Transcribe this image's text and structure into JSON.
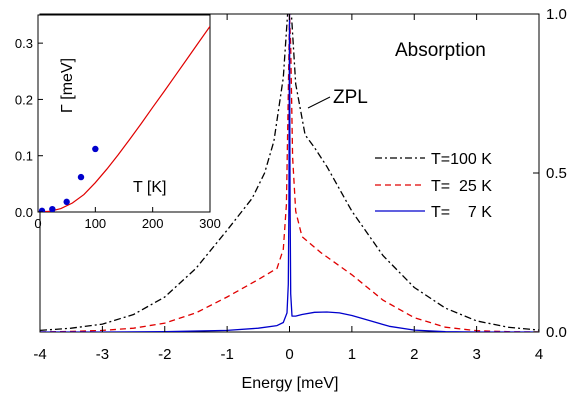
{
  "chart_data": [
    {
      "type": "line",
      "title": "",
      "xlabel": "Energy [meV]",
      "ylabel": "",
      "xlim": [
        -4,
        4
      ],
      "ylim": [
        0,
        1
      ],
      "x_ticks": [
        "-4",
        "-3",
        "-2",
        "-1",
        "0",
        "1",
        "2",
        "3",
        "4"
      ],
      "y_ticks_right": [
        "0.0",
        "0.5",
        "1.0"
      ],
      "legend_placement": "right",
      "annotations": [
        "Absorption",
        "ZPL"
      ],
      "grid": false,
      "series": [
        {
          "name": "T=100 K",
          "color": "#000000",
          "style": "dash-dot",
          "x": [
            -4.0,
            -3.5,
            -3.0,
            -2.5,
            -2.0,
            -1.5,
            -1.0,
            -0.6,
            -0.4,
            -0.25,
            -0.1,
            -0.03,
            0.0,
            0.03,
            0.1,
            0.25,
            0.4,
            0.6,
            1.0,
            1.5,
            2.0,
            2.5,
            3.0,
            3.5,
            4.0
          ],
          "y": [
            0.005,
            0.012,
            0.025,
            0.055,
            0.11,
            0.2,
            0.32,
            0.42,
            0.5,
            0.6,
            0.8,
            1.0,
            1.0,
            1.0,
            0.78,
            0.62,
            0.58,
            0.52,
            0.38,
            0.24,
            0.14,
            0.075,
            0.035,
            0.015,
            0.006
          ]
        },
        {
          "name": "T=  25 K",
          "color": "#e00000",
          "style": "dashed",
          "x": [
            -4.0,
            -3.5,
            -3.0,
            -2.5,
            -2.0,
            -1.5,
            -1.0,
            -0.5,
            -0.2,
            -0.1,
            -0.05,
            -0.02,
            0.0,
            0.02,
            0.05,
            0.1,
            0.2,
            0.5,
            1.0,
            1.5,
            2.0,
            2.5,
            3.0,
            3.5,
            4.0
          ],
          "y": [
            0.0,
            0.002,
            0.005,
            0.012,
            0.028,
            0.06,
            0.11,
            0.165,
            0.2,
            0.26,
            0.4,
            0.75,
            1.0,
            0.9,
            0.55,
            0.38,
            0.3,
            0.25,
            0.18,
            0.1,
            0.045,
            0.015,
            0.004,
            0.001,
            0.0
          ]
        },
        {
          "name": "T=    7 K",
          "color": "#0000cc",
          "style": "solid",
          "x": [
            -4.0,
            -3.0,
            -2.0,
            -1.0,
            -0.5,
            -0.2,
            -0.1,
            -0.04,
            -0.02,
            -0.01,
            0.0,
            0.01,
            0.02,
            0.04,
            0.1,
            0.2,
            0.4,
            0.6,
            0.8,
            1.0,
            1.3,
            1.6,
            2.0,
            2.5,
            3.0,
            4.0
          ],
          "y": [
            0.0,
            0.0,
            0.001,
            0.005,
            0.012,
            0.02,
            0.03,
            0.06,
            0.15,
            0.4,
            1.0,
            0.4,
            0.12,
            0.05,
            0.05,
            0.055,
            0.062,
            0.063,
            0.06,
            0.052,
            0.035,
            0.018,
            0.006,
            0.001,
            0.0,
            0.0
          ]
        }
      ]
    },
    {
      "type": "scatter",
      "title": "",
      "xlabel": "T [K]",
      "ylabel": "Γ [meV]",
      "xlim": [
        0,
        300
      ],
      "ylim": [
        0,
        0.35
      ],
      "x_ticks": [
        "0",
        "100",
        "200",
        "300"
      ],
      "y_ticks": [
        "0.0",
        "0.1",
        "0.2",
        "0.3"
      ],
      "points": {
        "color": "#0000cc",
        "x": [
          7,
          25,
          50,
          75,
          100
        ],
        "y": [
          0.002,
          0.005,
          0.018,
          0.062,
          0.112
        ]
      },
      "fit_line": {
        "color": "#e00000",
        "x": [
          0,
          20,
          40,
          60,
          80,
          100,
          120,
          140,
          160,
          180,
          200,
          220,
          240,
          260,
          280,
          300
        ],
        "y": [
          0.0,
          0.001,
          0.006,
          0.016,
          0.031,
          0.052,
          0.076,
          0.102,
          0.129,
          0.157,
          0.186,
          0.214,
          0.243,
          0.272,
          0.301,
          0.33
        ]
      }
    }
  ]
}
